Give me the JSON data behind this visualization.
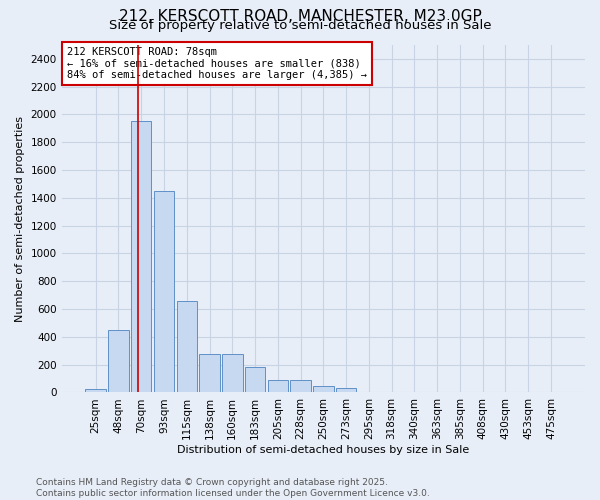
{
  "title_line1": "212, KERSCOTT ROAD, MANCHESTER, M23 0GP",
  "title_line2": "Size of property relative to semi-detached houses in Sale",
  "xlabel": "Distribution of semi-detached houses by size in Sale",
  "ylabel": "Number of semi-detached properties",
  "bar_labels": [
    "25sqm",
    "48sqm",
    "70sqm",
    "93sqm",
    "115sqm",
    "138sqm",
    "160sqm",
    "183sqm",
    "205sqm",
    "228sqm",
    "250sqm",
    "273sqm",
    "295sqm",
    "318sqm",
    "340sqm",
    "363sqm",
    "385sqm",
    "408sqm",
    "430sqm",
    "453sqm",
    "475sqm"
  ],
  "bar_values": [
    25,
    450,
    1950,
    1450,
    660,
    275,
    275,
    185,
    90,
    90,
    50,
    35,
    0,
    0,
    0,
    0,
    0,
    0,
    0,
    0,
    0
  ],
  "bar_color": "#c6d9f1",
  "bar_edge_color": "#6090c8",
  "grid_color": "#c8d4e4",
  "background_color": "#e8eef8",
  "vline_x_pos": 2.0,
  "vline_color": "#cc0000",
  "annotation_text": "212 KERSCOTT ROAD: 78sqm\n← 16% of semi-detached houses are smaller (838)\n84% of semi-detached houses are larger (4,385) →",
  "annotation_box_facecolor": "white",
  "annotation_box_edgecolor": "#cc0000",
  "ylim": [
    0,
    2500
  ],
  "yticks": [
    0,
    200,
    400,
    600,
    800,
    1000,
    1200,
    1400,
    1600,
    1800,
    2000,
    2200,
    2400
  ],
  "footer_line1": "Contains HM Land Registry data © Crown copyright and database right 2025.",
  "footer_line2": "Contains public sector information licensed under the Open Government Licence v3.0.",
  "title_fontsize": 11,
  "subtitle_fontsize": 9.5,
  "axis_label_fontsize": 8,
  "tick_fontsize": 7.5,
  "annotation_fontsize": 7.5,
  "footer_fontsize": 6.5
}
